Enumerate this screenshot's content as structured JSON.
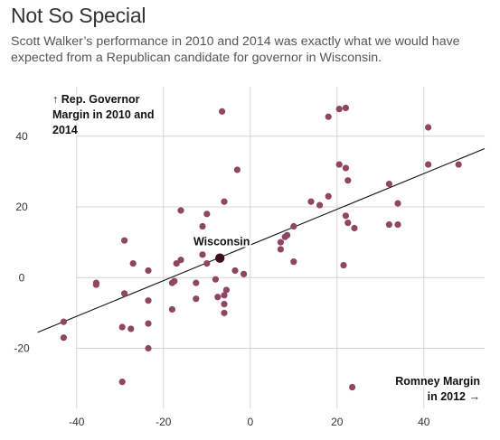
{
  "header": {
    "title": "Not So Special",
    "subtitle": "Scott Walker’s performance in 2010 and 2014 was exactly what we would have expected from a Republican candidate for governor in Wisconsin."
  },
  "colors": {
    "point": "#8e4662",
    "highlight": "#3d0f22",
    "grid": "#d4d4d4",
    "trend": "#111111"
  },
  "chart_data": {
    "type": "scatter",
    "title": "Not So Special",
    "subtitle": "Scott Walker’s performance in 2010 and 2014 was exactly what we would have expected from a Republican candidate for governor in Wisconsin.",
    "xlabel_lines": [
      "Romney Margin",
      "in 2012 →"
    ],
    "ylabel_lines": [
      "↑ Rep. Governor",
      "Margin in 2010 and",
      "2014"
    ],
    "xlim": [
      -46,
      54
    ],
    "ylim": [
      -37,
      54
    ],
    "x_ticks": [
      -40,
      -20,
      0,
      20,
      40
    ],
    "y_ticks": [
      -20,
      0,
      20,
      40
    ],
    "grid": true,
    "trendline": {
      "x": [
        -49,
        54
      ],
      "y": [
        -15.5,
        36.5
      ]
    },
    "highlight": {
      "label": "Wisconsin",
      "x": -7,
      "y": 5.5
    },
    "points": [
      {
        "x": -6.5,
        "y": 47
      },
      {
        "x": 20.5,
        "y": 47.7
      },
      {
        "x": 22,
        "y": 48
      },
      {
        "x": 18,
        "y": 45.5
      },
      {
        "x": 41,
        "y": 42.5
      },
      {
        "x": 20.5,
        "y": 32
      },
      {
        "x": 22,
        "y": 31
      },
      {
        "x": 41,
        "y": 32
      },
      {
        "x": 48,
        "y": 32
      },
      {
        "x": -3,
        "y": 30.5
      },
      {
        "x": 22.5,
        "y": 27.5
      },
      {
        "x": 32,
        "y": 26.5
      },
      {
        "x": 18,
        "y": 23
      },
      {
        "x": -6,
        "y": 21.5
      },
      {
        "x": 14,
        "y": 21.5
      },
      {
        "x": 16,
        "y": 20.5
      },
      {
        "x": 34,
        "y": 21
      },
      {
        "x": -16,
        "y": 19
      },
      {
        "x": -10,
        "y": 18
      },
      {
        "x": 22,
        "y": 17.5
      },
      {
        "x": 22.5,
        "y": 15.5
      },
      {
        "x": 32,
        "y": 15
      },
      {
        "x": 34,
        "y": 15
      },
      {
        "x": -11,
        "y": 14.5
      },
      {
        "x": 10,
        "y": 14.5
      },
      {
        "x": 24,
        "y": 14
      },
      {
        "x": 8.5,
        "y": 12
      },
      {
        "x": 8,
        "y": 11.5
      },
      {
        "x": -29,
        "y": 10.5
      },
      {
        "x": 7,
        "y": 10
      },
      {
        "x": 7,
        "y": 8
      },
      {
        "x": -11,
        "y": 6.5
      },
      {
        "x": -16,
        "y": 5
      },
      {
        "x": -17,
        "y": 4
      },
      {
        "x": -10,
        "y": 4
      },
      {
        "x": -27,
        "y": 4
      },
      {
        "x": 10,
        "y": 4.5
      },
      {
        "x": 21.5,
        "y": 3.5
      },
      {
        "x": -23.5,
        "y": 2
      },
      {
        "x": -3.5,
        "y": 2
      },
      {
        "x": -1.5,
        "y": 1
      },
      {
        "x": -35.5,
        "y": -1.5
      },
      {
        "x": -35.5,
        "y": -2
      },
      {
        "x": -17.5,
        "y": -1
      },
      {
        "x": -18,
        "y": -1.5
      },
      {
        "x": -12.5,
        "y": -1.5
      },
      {
        "x": -8,
        "y": -0.5
      },
      {
        "x": -5.5,
        "y": -3.5
      },
      {
        "x": -29,
        "y": -4.5
      },
      {
        "x": -6,
        "y": -5
      },
      {
        "x": -7.5,
        "y": -5.5
      },
      {
        "x": -12.5,
        "y": -6
      },
      {
        "x": -23.5,
        "y": -6.5
      },
      {
        "x": -6,
        "y": -7.5
      },
      {
        "x": -6,
        "y": -10
      },
      {
        "x": -18,
        "y": -9
      },
      {
        "x": -43,
        "y": -12.5
      },
      {
        "x": -23.5,
        "y": -13
      },
      {
        "x": -29.5,
        "y": -14
      },
      {
        "x": -27.5,
        "y": -14.5
      },
      {
        "x": -43,
        "y": -17
      },
      {
        "x": -23.5,
        "y": -20
      },
      {
        "x": -29.5,
        "y": -29.5
      },
      {
        "x": 23.5,
        "y": -31
      }
    ]
  }
}
